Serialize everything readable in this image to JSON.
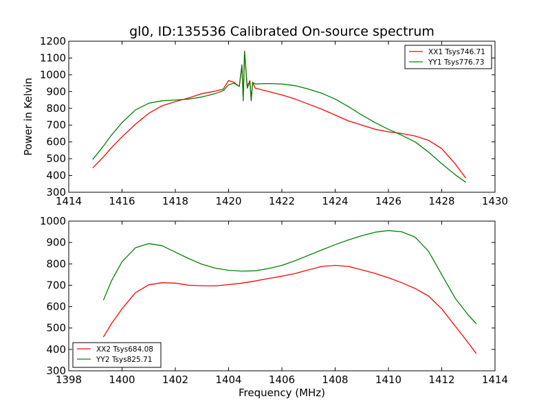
{
  "chart_data": [
    {
      "type": "line",
      "title": "gl0, ID:135536 Calibrated On-source spectrum",
      "xlabel": "",
      "ylabel": "Power in Kelvin",
      "xlim": [
        1414,
        1430
      ],
      "ylim": [
        300,
        1200
      ],
      "xticks": [
        1414,
        1416,
        1418,
        1420,
        1422,
        1424,
        1426,
        1428,
        1430
      ],
      "yticks": [
        300,
        400,
        500,
        600,
        700,
        800,
        900,
        1000,
        1100,
        1200
      ],
      "legend": "top-right",
      "grid": false,
      "series": [
        {
          "name": "XX1 Tsys746.71",
          "color": "#ff0000",
          "x": [
            1414.9,
            1415.3,
            1415.6,
            1416.0,
            1416.5,
            1417.0,
            1417.5,
            1418.0,
            1418.5,
            1419.0,
            1419.5,
            1419.8,
            1420.0,
            1420.2,
            1420.4,
            1420.5,
            1420.55,
            1420.6,
            1420.7,
            1420.8,
            1420.85,
            1420.9,
            1421.0,
            1421.5,
            1422.0,
            1422.5,
            1423.0,
            1423.5,
            1424.0,
            1424.5,
            1425.0,
            1425.5,
            1426.0,
            1426.5,
            1427.0,
            1427.5,
            1428.0,
            1428.5,
            1428.9
          ],
          "y": [
            445,
            510,
            565,
            630,
            705,
            770,
            815,
            840,
            862,
            888,
            902,
            915,
            965,
            955,
            930,
            1050,
            860,
            1140,
            930,
            965,
            850,
            955,
            920,
            900,
            880,
            855,
            825,
            795,
            760,
            725,
            700,
            675,
            660,
            650,
            635,
            610,
            560,
            470,
            385
          ]
        },
        {
          "name": "YY1 Tsys776.73",
          "color": "#008000",
          "x": [
            1414.9,
            1415.3,
            1415.6,
            1416.0,
            1416.5,
            1417.0,
            1417.5,
            1418.0,
            1418.5,
            1419.0,
            1419.5,
            1419.8,
            1420.0,
            1420.2,
            1420.4,
            1420.5,
            1420.55,
            1420.6,
            1420.7,
            1420.8,
            1420.85,
            1420.9,
            1421.0,
            1421.5,
            1422.0,
            1422.5,
            1423.0,
            1423.5,
            1424.0,
            1424.5,
            1425.0,
            1425.5,
            1426.0,
            1426.5,
            1427.0,
            1427.5,
            1428.0,
            1428.5,
            1428.9
          ],
          "y": [
            495,
            575,
            640,
            715,
            790,
            830,
            845,
            850,
            855,
            868,
            888,
            905,
            940,
            950,
            930,
            1060,
            845,
            1140,
            920,
            960,
            845,
            955,
            945,
            948,
            945,
            935,
            915,
            890,
            855,
            810,
            760,
            715,
            675,
            640,
            600,
            540,
            470,
            405,
            360
          ]
        }
      ]
    },
    {
      "type": "line",
      "title": "",
      "xlabel": "Frequency (MHz)",
      "ylabel": "",
      "xlim": [
        1398,
        1414
      ],
      "ylim": [
        300,
        1000
      ],
      "xticks": [
        1398,
        1400,
        1402,
        1404,
        1406,
        1408,
        1410,
        1412,
        1414
      ],
      "yticks": [
        300,
        400,
        500,
        600,
        700,
        800,
        900,
        1000
      ],
      "legend": "bottom-left",
      "grid": false,
      "series": [
        {
          "name": "XX2 Tsys684.08",
          "color": "#ff0000",
          "x": [
            1399.3,
            1399.6,
            1400.0,
            1400.5,
            1401.0,
            1401.5,
            1402.0,
            1402.5,
            1403.0,
            1403.5,
            1404.0,
            1404.5,
            1405.0,
            1405.5,
            1406.0,
            1406.5,
            1407.0,
            1407.5,
            1408.0,
            1408.5,
            1409.0,
            1409.5,
            1410.0,
            1410.5,
            1411.0,
            1411.5,
            1412.0,
            1412.5,
            1413.0,
            1413.3
          ],
          "y": [
            458,
            520,
            590,
            665,
            702,
            712,
            710,
            700,
            698,
            697,
            703,
            710,
            720,
            732,
            742,
            755,
            772,
            788,
            793,
            788,
            772,
            755,
            735,
            712,
            685,
            650,
            590,
            510,
            430,
            380
          ]
        },
        {
          "name": "YY2 Tsys825.71",
          "color": "#008000",
          "x": [
            1399.3,
            1399.6,
            1400.0,
            1400.5,
            1401.0,
            1401.5,
            1402.0,
            1402.5,
            1403.0,
            1403.5,
            1404.0,
            1404.5,
            1405.0,
            1405.5,
            1406.0,
            1406.5,
            1407.0,
            1407.5,
            1408.0,
            1408.5,
            1409.0,
            1409.5,
            1410.0,
            1410.5,
            1411.0,
            1411.5,
            1412.0,
            1412.5,
            1413.0,
            1413.3
          ],
          "y": [
            630,
            720,
            810,
            875,
            895,
            885,
            855,
            825,
            798,
            780,
            770,
            766,
            768,
            778,
            793,
            815,
            840,
            865,
            890,
            912,
            932,
            948,
            956,
            950,
            925,
            860,
            750,
            640,
            560,
            520
          ]
        }
      ]
    }
  ]
}
